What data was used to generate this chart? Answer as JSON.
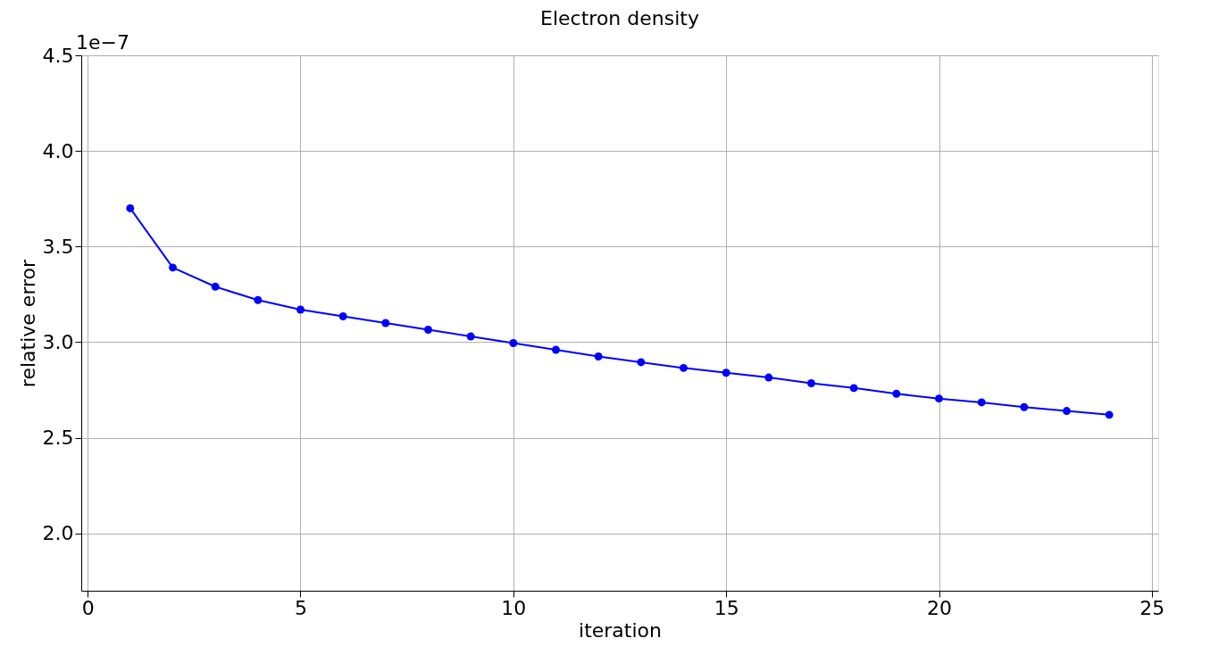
{
  "chart_data": {
    "type": "line",
    "title": "Electron density",
    "xlabel": "iteration",
    "ylabel": "relative error",
    "x": [
      1,
      2,
      3,
      4,
      5,
      6,
      7,
      8,
      9,
      10,
      11,
      12,
      13,
      14,
      15,
      16,
      17,
      18,
      19,
      20,
      21,
      22,
      23,
      24
    ],
    "series": [
      {
        "color": "#0000ff",
        "values": [
          3.7,
          3.39,
          3.29,
          3.22,
          3.17,
          3.135,
          3.1,
          3.065,
          3.03,
          2.995,
          2.96,
          2.925,
          2.895,
          2.865,
          2.84,
          2.815,
          2.785,
          2.76,
          2.73,
          2.705,
          2.685,
          2.66,
          2.64,
          2.62
        ]
      }
    ],
    "xlim": [
      -0.15,
      25.15
    ],
    "xticks": [
      0,
      5,
      10,
      15,
      20,
      25
    ],
    "ylim": [
      1.7,
      4.5
    ],
    "yticks": [
      {
        "value": 2.0,
        "label": "2.0"
      },
      {
        "value": 2.5,
        "label": "2.5"
      },
      {
        "value": 3.0,
        "label": "3.0"
      },
      {
        "value": 3.5,
        "label": "3.5"
      },
      {
        "value": 4.0,
        "label": "4.0"
      },
      {
        "value": 4.5,
        "label": "4.5"
      }
    ],
    "annotations": [
      "1e−7"
    ],
    "grid": true,
    "marker": "circle",
    "line_style": "solid"
  }
}
